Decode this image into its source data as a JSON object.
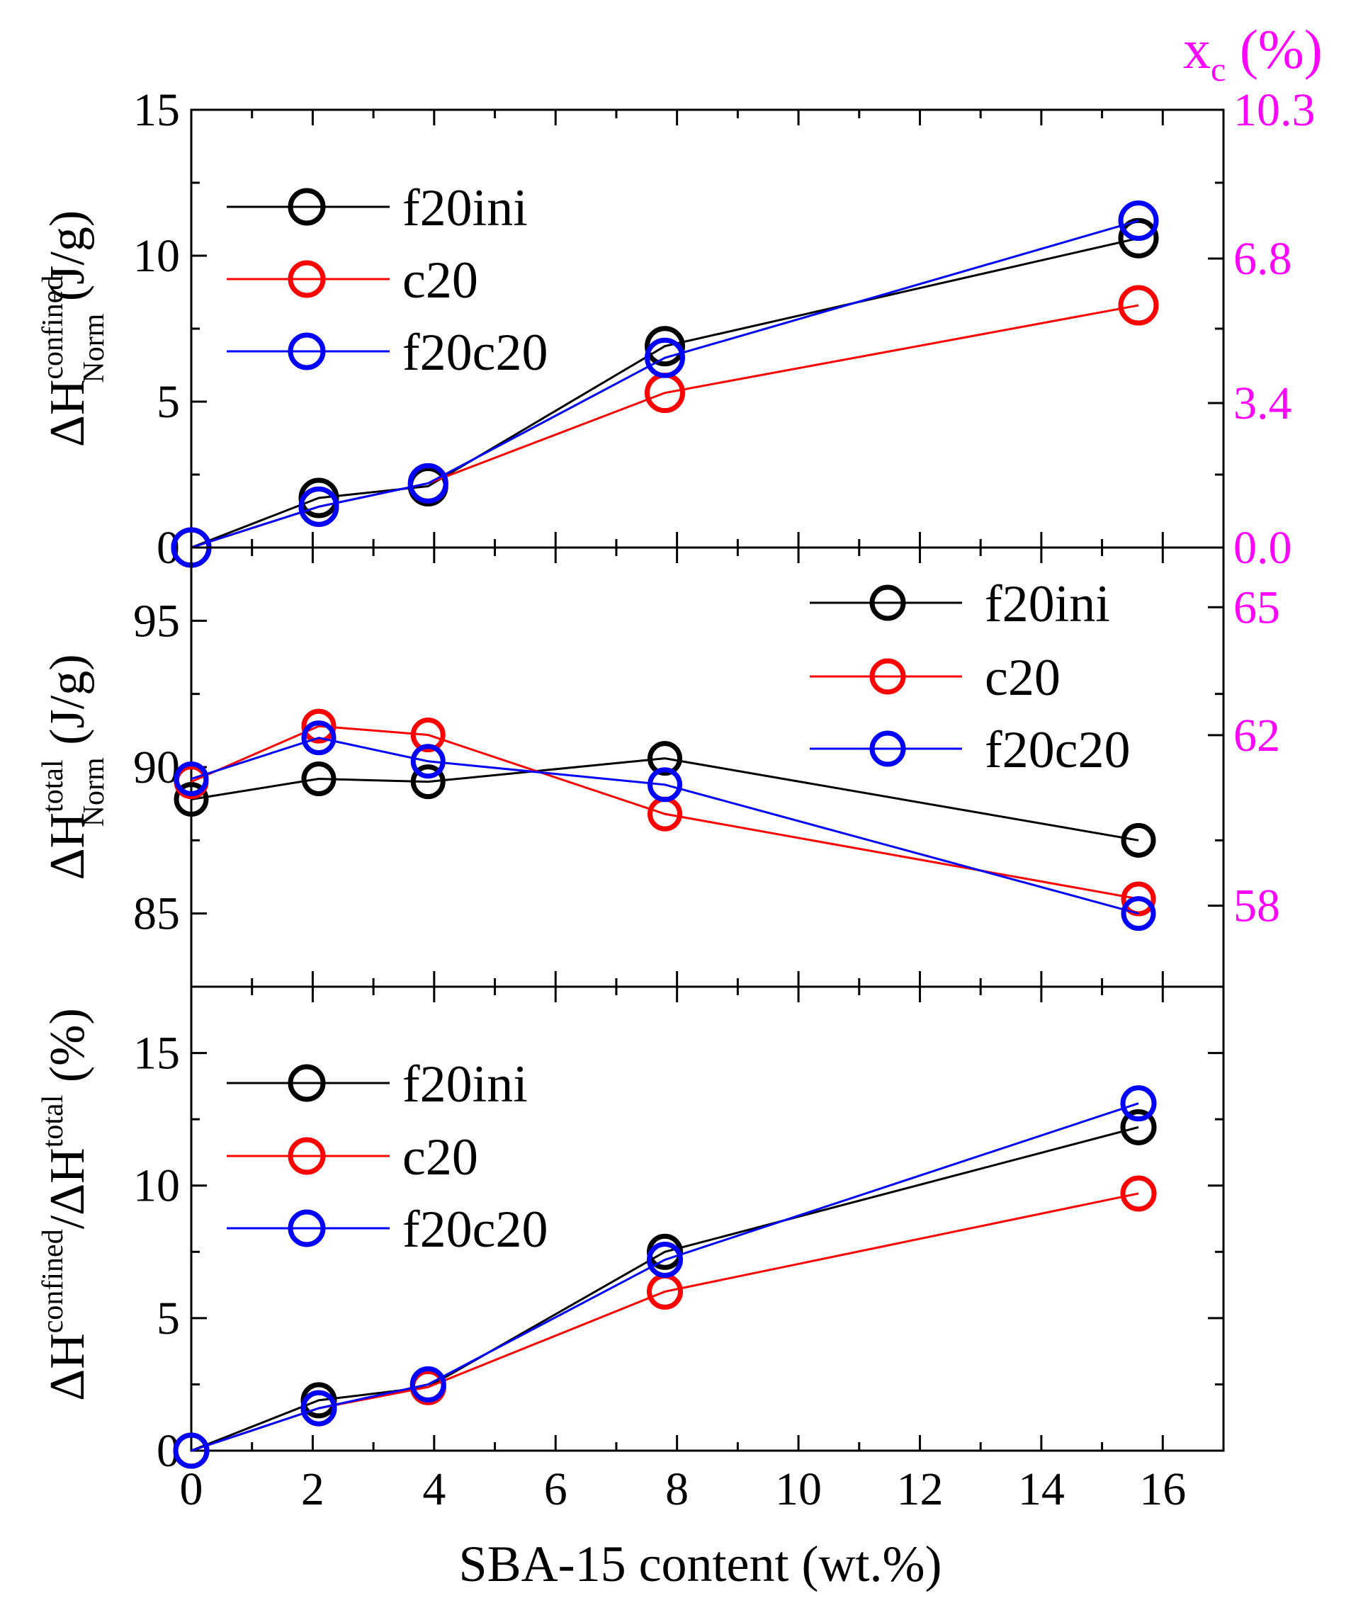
{
  "chart_data": [
    {
      "type": "line",
      "panel": "top",
      "ylabel_main": "ΔH",
      "ylabel_sup": "confined",
      "ylabel_sub": "Norm",
      "ylabel_unit": "(J/g)",
      "ylim": [
        0,
        15
      ],
      "yticks": [
        0,
        5,
        10,
        15
      ],
      "right_axis": {
        "label_main": "x",
        "label_sub": "c",
        "label_unit": "(%)",
        "ticks": [
          {
            "value": 0.0,
            "label": "0.0"
          },
          {
            "value": 3.4,
            "label": "3.4"
          },
          {
            "value": 6.8,
            "label": "6.8"
          },
          {
            "value": 10.3,
            "label": "10.3"
          }
        ],
        "ylim": [
          0,
          10.3
        ]
      },
      "legend_position": "top-left",
      "x": [
        0,
        2.1,
        3.9,
        7.8,
        15.6
      ],
      "series": [
        {
          "name": "f20ini",
          "color": "#000000",
          "values": [
            0,
            1.7,
            2.1,
            6.9,
            10.6
          ]
        },
        {
          "name": "c20",
          "color": "#ff0000",
          "values": [
            0,
            1.4,
            2.2,
            5.3,
            8.3
          ]
        },
        {
          "name": "f20c20",
          "color": "#0000ff",
          "values": [
            0,
            1.4,
            2.2,
            6.5,
            11.2
          ]
        }
      ]
    },
    {
      "type": "line",
      "panel": "middle",
      "ylabel_main": "ΔH",
      "ylabel_sup": "total",
      "ylabel_sub": "Norm",
      "ylabel_unit": "(J/g)",
      "ylim": [
        82.5,
        97.5
      ],
      "yticks": [
        85,
        90,
        95
      ],
      "right_axis": {
        "ticks": [
          {
            "value": 58,
            "label": "58"
          },
          {
            "value": 62,
            "label": "62"
          },
          {
            "value": 65,
            "label": "65"
          }
        ],
        "ylim": [
          56.1,
          66.4
        ]
      },
      "legend_position": "top-right",
      "x": [
        0,
        2.1,
        3.9,
        7.8,
        15.6
      ],
      "series": [
        {
          "name": "f20ini",
          "color": "#000000",
          "values": [
            88.9,
            89.6,
            89.5,
            90.3,
            87.5
          ]
        },
        {
          "name": "c20",
          "color": "#ff0000",
          "values": [
            89.5,
            91.4,
            91.1,
            88.4,
            85.5
          ]
        },
        {
          "name": "f20c20",
          "color": "#0000ff",
          "values": [
            89.6,
            91.0,
            90.2,
            89.4,
            85.0
          ]
        }
      ]
    },
    {
      "type": "line",
      "panel": "bottom",
      "ylabel_main": "ΔH",
      "ylabel_sup": "confined",
      "ylabel_mid": "/ΔH",
      "ylabel_sup2": "total",
      "ylabel_unit": "(%)",
      "ylim": [
        0,
        17.5
      ],
      "yticks": [
        0,
        5,
        10,
        15
      ],
      "xlabel": "SBA-15 content (wt.%)",
      "xlim": [
        0,
        17
      ],
      "xticks": [
        0,
        2,
        4,
        6,
        8,
        10,
        12,
        14,
        16
      ],
      "legend_position": "top-left",
      "x": [
        0,
        2.1,
        3.9,
        7.8,
        15.6
      ],
      "series": [
        {
          "name": "f20ini",
          "color": "#000000",
          "values": [
            0,
            1.9,
            2.4,
            7.5,
            12.2
          ]
        },
        {
          "name": "c20",
          "color": "#ff0000",
          "values": [
            0,
            1.6,
            2.4,
            6.0,
            9.7
          ]
        },
        {
          "name": "f20c20",
          "color": "#0000ff",
          "values": [
            0,
            1.6,
            2.5,
            7.2,
            13.1
          ]
        }
      ]
    }
  ],
  "styles": {
    "axis_color": "#000000",
    "right_axis_color": "#ff00ff"
  }
}
